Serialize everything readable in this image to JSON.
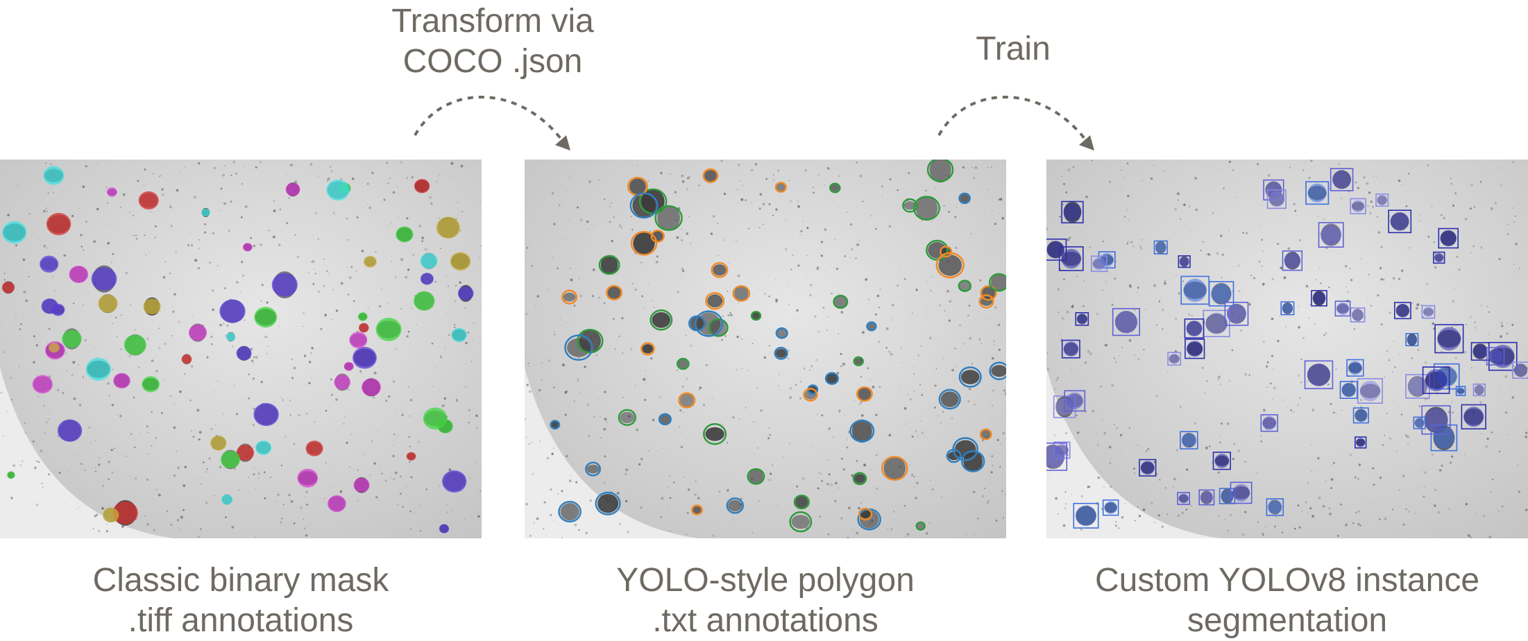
{
  "steps": [
    {
      "label": "Transform via\nCOCO .json"
    },
    {
      "label": "Train"
    }
  ],
  "panels": [
    {
      "caption": "Classic binary mask\n.tiff annotations",
      "style": "masks",
      "colors": [
        "#5a3dd8",
        "#3fd63f",
        "#d43fd0",
        "#d63030",
        "#40e0e0",
        "#c9b23a"
      ]
    },
    {
      "caption": "YOLO-style polygon\n.txt annotations",
      "style": "polygons",
      "colors": [
        "#f08a24",
        "#2f9a3c",
        "#2f7fc0"
      ]
    },
    {
      "caption": "Custom YOLOv8 instance\nsegmentation",
      "style": "boxes",
      "colors": [
        "#5f5fd8",
        "#3e6fe0",
        "#2b2bb0",
        "#8a8ae6"
      ]
    }
  ],
  "arrow_color": "#6e6a63"
}
